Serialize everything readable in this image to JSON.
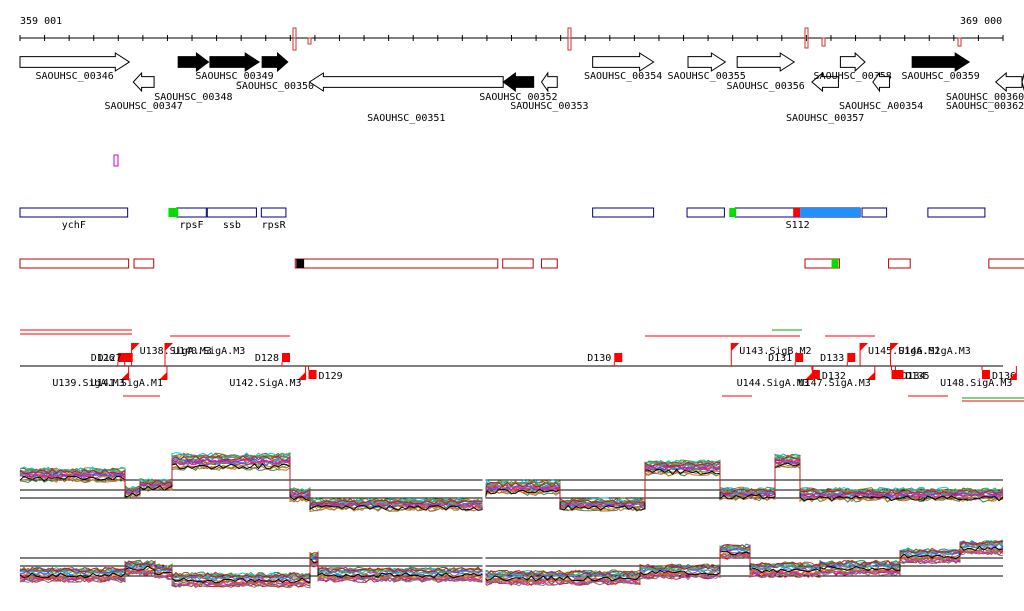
{
  "ruler": {
    "start_label": "359 001",
    "end_label": "369 000",
    "start": 359001,
    "end": 369000
  },
  "colors": {
    "stroke": "#000000",
    "feature_blue": "#000080",
    "sky_blue": "#1e90ff",
    "red": "#ff0000",
    "dark_red": "#c00000",
    "green": "#00dd00",
    "magenta": "#cc00cc",
    "black": "#000000"
  },
  "genes": [
    {
      "label": "SAOUHSC_00346",
      "strand": "+",
      "filled": false,
      "start": 359001,
      "end": 360113
    },
    {
      "label": "SAOUHSC_00347",
      "strand": "-",
      "filled": false,
      "start": 360153,
      "end": 360365
    },
    {
      "label": "SAOUHSC_00348",
      "strand": "+",
      "filled": true,
      "start": 360610,
      "end": 360919
    },
    {
      "label": "SAOUHSC_00349",
      "strand": "+",
      "filled": true,
      "start": 360933,
      "end": 361434
    },
    {
      "label": "SAOUHSC_00350",
      "strand": "+",
      "filled": true,
      "start": 361464,
      "end": 361725
    },
    {
      "label": "SAOUHSC_00351",
      "strand": "-",
      "filled": false,
      "start": 361945,
      "end": 363916
    },
    {
      "label": "SAOUHSC_00352",
      "strand": "-",
      "filled": true,
      "start": 363916,
      "end": 364226
    },
    {
      "label": "SAOUHSC_00353",
      "strand": "-",
      "filled": false,
      "start": 364306,
      "end": 364466
    },
    {
      "label": "SAOUHSC_00354",
      "strand": "+",
      "filled": false,
      "start": 364826,
      "end": 365446
    },
    {
      "label": "SAOUHSC_00355",
      "strand": "+",
      "filled": false,
      "start": 365796,
      "end": 366176
    },
    {
      "label": "SAOUHSC_00356",
      "strand": "+",
      "filled": false,
      "start": 366296,
      "end": 366876
    },
    {
      "label": "SAOUHSC_00357",
      "strand": "-",
      "filled": false,
      "start": 367056,
      "end": 367326
    },
    {
      "label": "SAOUHSC_00358",
      "strand": "+",
      "filled": false,
      "start": 367346,
      "end": 367596
    },
    {
      "label": "SAOUHSC_A00354",
      "strand": "-",
      "filled": false,
      "start": 367676,
      "end": 367846
    },
    {
      "label": "SAOUHSC_00359",
      "strand": "+",
      "filled": true,
      "start": 368076,
      "end": 368656
    },
    {
      "label": "SAOUHSC_00360",
      "strand": "-",
      "filled": false,
      "start": 368926,
      "end": 369306
    },
    {
      "label": "SAOUHSC_00362",
      "strand": "-",
      "filled": false,
      "start": 369526,
      "end": 369876
    }
  ],
  "operons": [
    {
      "label": "ychF",
      "start": 359001,
      "end": 360096
    },
    {
      "label": "rpsF",
      "start": 360596,
      "end": 360896
    },
    {
      "label": "ssb",
      "start": 360906,
      "end": 361406
    },
    {
      "label": "rpsR",
      "start": 361456,
      "end": 361706
    },
    {
      "label": "",
      "start": 364826,
      "end": 365446
    },
    {
      "label": "",
      "start": 365786,
      "end": 366166
    },
    {
      "label": "S112",
      "start": 366276,
      "end": 367546
    },
    {
      "label": "",
      "start": 367566,
      "end": 367816
    },
    {
      "label": "",
      "start": 368236,
      "end": 368816
    }
  ],
  "operon_marks": [
    {
      "kind": "green",
      "start": 360511,
      "end": 360611
    },
    {
      "kind": "green",
      "start": 366216,
      "end": 366286
    },
    {
      "kind": "red",
      "start": 366866,
      "end": 366936
    },
    {
      "kind": "blue",
      "start": 366936,
      "end": 367546
    }
  ],
  "transcripts_top": [
    {
      "start": 359001,
      "end": 360106
    },
    {
      "start": 360161,
      "end": 360361
    },
    {
      "start": 361801,
      "end": 363861
    },
    {
      "start": 363911,
      "end": 364221
    },
    {
      "start": 364306,
      "end": 364466
    },
    {
      "start": 366986,
      "end": 367336
    },
    {
      "start": 367836,
      "end": 368056
    },
    {
      "start": 368856,
      "end": 369236
    },
    {
      "start": 369486,
      "end": 369826
    }
  ],
  "transcript_marks": [
    {
      "kind": "black",
      "start": 361811,
      "end": 361891
    },
    {
      "kind": "green",
      "start": 367256,
      "end": 367326
    }
  ],
  "promoters_upper": [
    {
      "label": "D126",
      "pos": 359996,
      "style": "D"
    },
    {
      "label": "D127",
      "pos": 360066,
      "style": "D"
    },
    {
      "label": "U138.SigA.M3",
      "pos": 360136,
      "style": "U"
    },
    {
      "label": "U140.SigA.M3",
      "pos": 360476,
      "style": "U"
    },
    {
      "label": "D128",
      "pos": 361666,
      "style": "D"
    },
    {
      "label": "D130",
      "pos": 365046,
      "style": "D"
    },
    {
      "label": "U143.SigB.M2",
      "pos": 366236,
      "style": "U"
    },
    {
      "label": "D131",
      "pos": 366886,
      "style": "D"
    },
    {
      "label": "D133",
      "pos": 367416,
      "style": "D"
    },
    {
      "label": "U145.SigA.M2",
      "pos": 367546,
      "style": "U"
    },
    {
      "label": "U146.SigA.M3",
      "pos": 367856,
      "style": "U"
    }
  ],
  "promoters_lower": [
    {
      "label": "U139.SigA.M3",
      "pos": 360106,
      "style": "U"
    },
    {
      "label": "U141.SigA.M1",
      "pos": 360496,
      "style": "U"
    },
    {
      "label": "U142.SigA.M3",
      "pos": 361906,
      "style": "U"
    },
    {
      "label": "D129",
      "pos": 361936,
      "style": "D"
    },
    {
      "label": "U144.SigA.M3",
      "pos": 367066,
      "style": "U"
    },
    {
      "label": "D132",
      "pos": 367056,
      "style": "D"
    },
    {
      "label": "U147.SigA.M3",
      "pos": 367696,
      "style": "U"
    },
    {
      "label": "D134",
      "pos": 367866,
      "style": "D"
    },
    {
      "label": "D135",
      "pos": 367906,
      "style": "D"
    },
    {
      "label": "D136",
      "pos": 368786,
      "style": "D"
    },
    {
      "label": "U148.SigA.M3",
      "pos": 369136,
      "style": "U"
    }
  ]
}
